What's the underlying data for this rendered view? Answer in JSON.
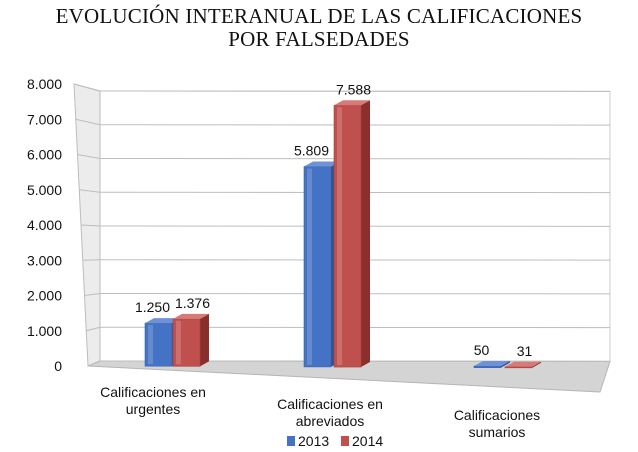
{
  "chart_data": {
    "type": "bar",
    "title_lines": [
      "EVOLUCIÓN INTERANUAL DE LAS CALIFICACIONES",
      "POR FALSEDADES"
    ],
    "categories": [
      [
        "Calificaciones en",
        "urgentes"
      ],
      [
        "Calificaciones en",
        "abreviados"
      ],
      [
        "Calificaciones",
        "sumarios"
      ]
    ],
    "series": [
      {
        "name": "2013",
        "values": [
          1250,
          5809,
          50
        ],
        "labels": [
          "1.250",
          "5.809",
          "50"
        ],
        "color": "#4472c4"
      },
      {
        "name": "2014",
        "values": [
          1376,
          7588,
          31
        ],
        "labels": [
          "1.376",
          "7.588",
          "31"
        ],
        "color": "#c0504d"
      }
    ],
    "ylim": [
      0,
      8000
    ],
    "yticks": [
      {
        "value": 0,
        "label": "0"
      },
      {
        "value": 1000,
        "label": "1.000"
      },
      {
        "value": 2000,
        "label": "2.000"
      },
      {
        "value": 3000,
        "label": "3.000"
      },
      {
        "value": 4000,
        "label": "4.000"
      },
      {
        "value": 5000,
        "label": "5.000"
      },
      {
        "value": 6000,
        "label": "6.000"
      },
      {
        "value": 7000,
        "label": "7.000"
      },
      {
        "value": 8000,
        "label": "8.000"
      }
    ],
    "grid": true,
    "legend_position": "bottom"
  }
}
